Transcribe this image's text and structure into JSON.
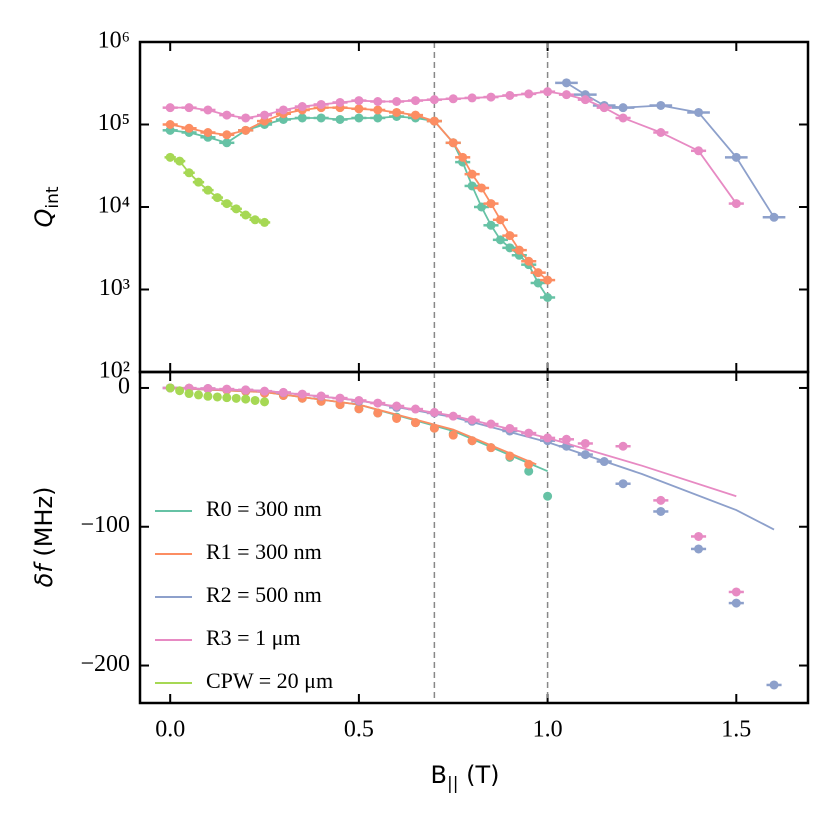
{
  "chart_data": [
    {
      "type": "line",
      "log_y": true,
      "ylabel_parts": [
        "Q",
        "int"
      ],
      "xlim": [
        -0.08,
        1.69
      ],
      "ylim": [
        100,
        1000000
      ],
      "yticks": [
        {
          "value": 100,
          "label": "10²"
        },
        {
          "value": 1000,
          "label": "10³"
        },
        {
          "value": 10000,
          "label": "10⁴"
        },
        {
          "value": 100000,
          "label": "10⁵"
        },
        {
          "value": 1000000,
          "label": "10⁶"
        }
      ],
      "vlines": [
        0.7,
        1.0
      ],
      "series": [
        {
          "color": "#66c2a5",
          "xerr": 0.02,
          "x": [
            0,
            0.05,
            0.1,
            0.15,
            0.2,
            0.25,
            0.3,
            0.35,
            0.4,
            0.45,
            0.5,
            0.55,
            0.6,
            0.65,
            0.7,
            0.75,
            0.775,
            0.8,
            0.825,
            0.85,
            0.875,
            0.9,
            0.925,
            0.95,
            0.975,
            1.0
          ],
          "values": [
            85000,
            80000,
            70000,
            60000,
            85000,
            100000,
            115000,
            120000,
            120000,
            115000,
            120000,
            120000,
            125000,
            120000,
            110000,
            60000,
            35000,
            18000,
            10000,
            6000,
            4000,
            3200,
            2600,
            2000,
            1200,
            800
          ]
        },
        {
          "color": "#fc8d62",
          "xerr": 0.02,
          "x": [
            0,
            0.05,
            0.1,
            0.15,
            0.2,
            0.25,
            0.3,
            0.35,
            0.4,
            0.45,
            0.5,
            0.55,
            0.6,
            0.65,
            0.7,
            0.75,
            0.775,
            0.8,
            0.825,
            0.85,
            0.875,
            0.9,
            0.925,
            0.95,
            0.975,
            1.0
          ],
          "values": [
            100000,
            90000,
            80000,
            75000,
            85000,
            110000,
            135000,
            150000,
            160000,
            160000,
            155000,
            150000,
            140000,
            130000,
            110000,
            60000,
            40000,
            25000,
            17000,
            11000,
            7000,
            4500,
            3000,
            2200,
            1600,
            1300
          ]
        },
        {
          "color": "#8da0cb",
          "xerr": 0.03,
          "x": [
            1.05,
            1.1,
            1.15,
            1.2,
            1.3,
            1.4,
            1.5,
            1.6
          ],
          "values": [
            320000,
            230000,
            170000,
            160000,
            170000,
            140000,
            40000,
            7500
          ]
        },
        {
          "color": "#e78ac3",
          "xerr": 0.02,
          "x": [
            0,
            0.05,
            0.1,
            0.15,
            0.2,
            0.25,
            0.3,
            0.35,
            0.4,
            0.45,
            0.5,
            0.55,
            0.6,
            0.65,
            0.7,
            0.75,
            0.8,
            0.85,
            0.9,
            0.95,
            1.0,
            1.05,
            1.1,
            1.15,
            1.2,
            1.3,
            1.4,
            1.5
          ],
          "values": [
            160000,
            160000,
            150000,
            130000,
            120000,
            130000,
            150000,
            165000,
            175000,
            185000,
            195000,
            190000,
            190000,
            195000,
            200000,
            205000,
            210000,
            215000,
            225000,
            235000,
            250000,
            230000,
            200000,
            160000,
            120000,
            80000,
            48000,
            11000
          ]
        },
        {
          "color": "#a6d854",
          "xerr": 0.015,
          "x": [
            0,
            0.025,
            0.05,
            0.075,
            0.1,
            0.125,
            0.15,
            0.175,
            0.2,
            0.225,
            0.25
          ],
          "values": [
            40000,
            36000,
            26000,
            20000,
            16000,
            13000,
            11000,
            9500,
            8000,
            7000,
            6500
          ]
        }
      ]
    },
    {
      "type": "scatter",
      "ylabel_parts": [
        "δf",
        "(MHz)"
      ],
      "xlabel_parts": [
        "B",
        "||",
        "(T)"
      ],
      "xlim": [
        -0.08,
        1.69
      ],
      "ylim": [
        -227,
        11.5
      ],
      "xticks": [
        {
          "value": 0,
          "label": "0.0"
        },
        0.5,
        {
          "value": 1,
          "label": "1.0"
        },
        1.5
      ],
      "yticks": [
        0,
        {
          "value": -100,
          "label": "−100"
        },
        {
          "value": -200,
          "label": "−200"
        }
      ],
      "vlines": [
        0.7,
        1.0
      ],
      "legend": "lower left",
      "series": [
        {
          "name": "R0 = 300 nm",
          "color": "#66c2a5",
          "x": [
            0,
            0.05,
            0.1,
            0.15,
            0.2,
            0.25,
            0.3,
            0.35,
            0.4,
            0.45,
            0.5,
            0.55,
            0.6,
            0.65,
            0.7,
            0.75,
            0.8,
            0.85,
            0.9,
            0.95,
            1.0
          ],
          "values": [
            0,
            -0.2,
            -0.6,
            -1.4,
            -2.4,
            -3.8,
            -5.4,
            -7.4,
            -9.6,
            -12,
            -15,
            -18,
            -21,
            -25,
            -29,
            -33,
            -38,
            -43,
            -50,
            -60,
            -78
          ],
          "fit_x": [
            0,
            0.25,
            0.5,
            0.75,
            1.0
          ],
          "fit_values": [
            0,
            -3,
            -12,
            -31,
            -60
          ]
        },
        {
          "name": "R1 = 300 nm",
          "color": "#fc8d62",
          "x": [
            0,
            0.05,
            0.1,
            0.15,
            0.2,
            0.25,
            0.3,
            0.35,
            0.4,
            0.45,
            0.5,
            0.55,
            0.6,
            0.65,
            0.7,
            0.75,
            0.8,
            0.85,
            0.9,
            0.95
          ],
          "values": [
            0,
            -0.2,
            -0.6,
            -1.4,
            -2.4,
            -3.8,
            -5.4,
            -7.4,
            -9.6,
            -12,
            -15,
            -18,
            -22,
            -25,
            -29,
            -34,
            -38,
            -43,
            -49,
            -55
          ],
          "fit_x": [
            0,
            0.25,
            0.5,
            0.75,
            0.97
          ],
          "fit_values": [
            0,
            -3,
            -12,
            -30,
            -55
          ]
        },
        {
          "name": "R2 = 500 nm",
          "color": "#8da0cb",
          "xerr": 0.02,
          "x": [
            0,
            0.1,
            0.2,
            0.3,
            0.4,
            0.5,
            0.6,
            0.7,
            0.8,
            0.9,
            1.0,
            1.05,
            1.1,
            1.15,
            1.2,
            1.3,
            1.4,
            1.5,
            1.6
          ],
          "values": [
            0,
            -0.4,
            -1.5,
            -3.4,
            -6,
            -9.5,
            -14,
            -18,
            -24,
            -31,
            -38,
            -42,
            -48,
            -53,
            -69,
            -89,
            -116,
            -155,
            -214
          ],
          "fit_x": [
            0,
            0.25,
            0.5,
            0.75,
            1.0,
            1.25,
            1.5,
            1.6
          ],
          "fit_values": [
            0,
            -2,
            -9,
            -21,
            -39,
            -62,
            -88,
            -102
          ]
        },
        {
          "name": "R3 = 1 μm",
          "color": "#e78ac3",
          "xerr": 0.02,
          "x": [
            0,
            0.05,
            0.1,
            0.15,
            0.2,
            0.25,
            0.3,
            0.35,
            0.4,
            0.45,
            0.5,
            0.55,
            0.6,
            0.65,
            0.7,
            0.75,
            0.8,
            0.85,
            0.9,
            0.95,
            1.0,
            1.05,
            1.1,
            1.2,
            1.3,
            1.4,
            1.5
          ],
          "values": [
            0,
            -0.1,
            -0.4,
            -0.8,
            -1.4,
            -2.3,
            -3.2,
            -4.4,
            -5.8,
            -7.3,
            -9,
            -10.9,
            -13,
            -15.2,
            -17.6,
            -20.3,
            -23,
            -26,
            -29.2,
            -32.5,
            -36,
            -37,
            -40,
            -42,
            -81,
            -107,
            -147
          ],
          "fit_x": [
            0,
            0.25,
            0.5,
            0.75,
            1.0,
            1.25,
            1.5
          ],
          "fit_values": [
            0,
            -2,
            -9,
            -20,
            -36,
            -56,
            -78
          ]
        },
        {
          "name": "CPW = 20 μm",
          "color": "#a6d854",
          "x": [
            0,
            0.025,
            0.05,
            0.075,
            0.1,
            0.125,
            0.15,
            0.175,
            0.2,
            0.225,
            0.25
          ],
          "values": [
            0,
            -2,
            -4,
            -5,
            -6,
            -6.5,
            -7,
            -7.5,
            -8,
            -9,
            -10
          ]
        }
      ]
    }
  ]
}
